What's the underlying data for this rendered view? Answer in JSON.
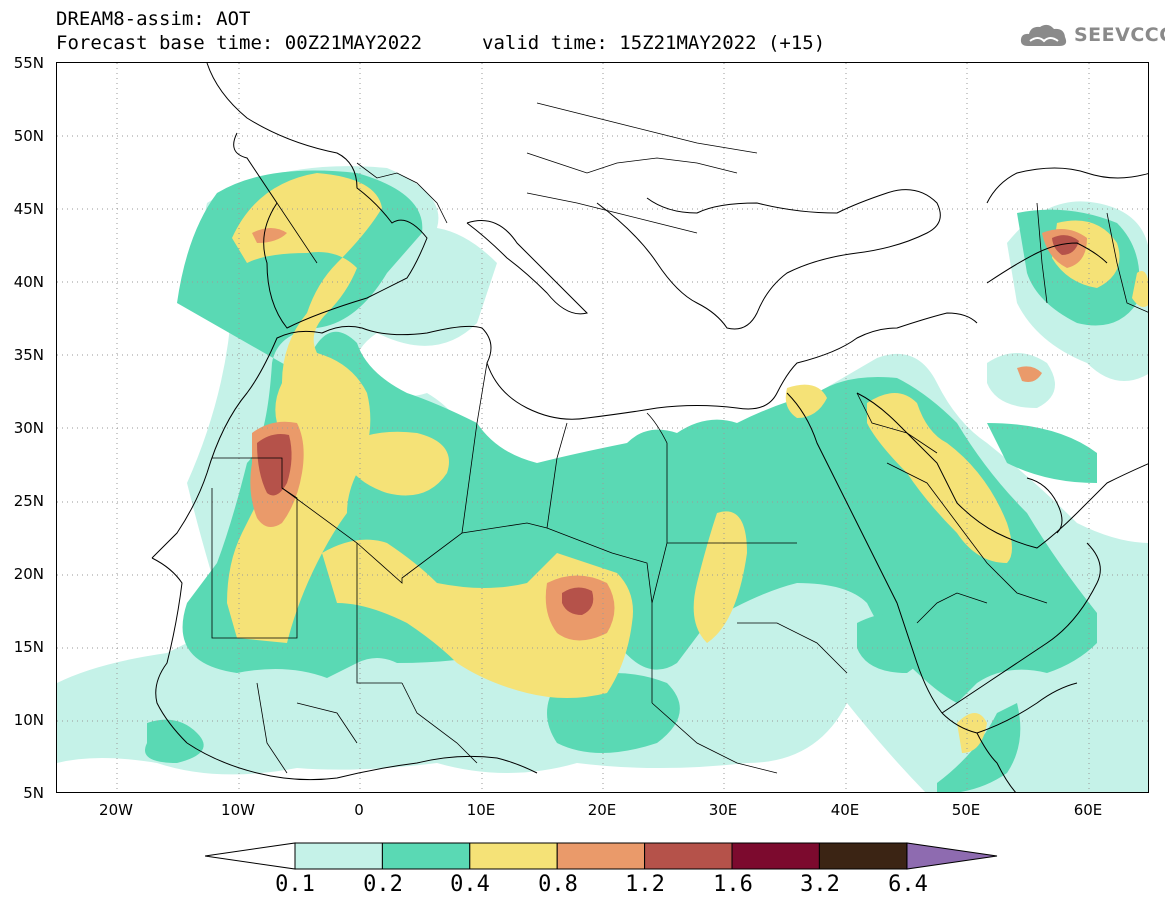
{
  "header": {
    "line1": "DREAM8-assim: AOT",
    "line2": "Forecast base time: 00Z21MAY2022",
    "valid": "valid time: 15Z21MAY2022 (+15)"
  },
  "logo": {
    "text": "SEEVCCC",
    "icon": "cloud-logo-icon",
    "color": "#8a8a8a"
  },
  "map": {
    "lon_range": [
      -25,
      65
    ],
    "lat_range": [
      5,
      55
    ],
    "lat_labels": [
      {
        "lat": 55,
        "label": "55N"
      },
      {
        "lat": 50,
        "label": "50N"
      },
      {
        "lat": 45,
        "label": "45N"
      },
      {
        "lat": 40,
        "label": "40N"
      },
      {
        "lat": 35,
        "label": "35N"
      },
      {
        "lat": 30,
        "label": "30N"
      },
      {
        "lat": 25,
        "label": "25N"
      },
      {
        "lat": 20,
        "label": "20N"
      },
      {
        "lat": 15,
        "label": "15N"
      },
      {
        "lat": 10,
        "label": "10N"
      },
      {
        "lat": 5,
        "label": "5N"
      }
    ],
    "lon_labels": [
      {
        "lon": -20,
        "label": "20W"
      },
      {
        "lon": -10,
        "label": "10W"
      },
      {
        "lon": 0,
        "label": "0"
      },
      {
        "lon": 10,
        "label": "10E"
      },
      {
        "lon": 20,
        "label": "20E"
      },
      {
        "lon": 30,
        "label": "30E"
      },
      {
        "lon": 40,
        "label": "40E"
      },
      {
        "lon": 50,
        "label": "50E"
      },
      {
        "lon": 60,
        "label": "60E"
      }
    ],
    "grid": "dotted"
  },
  "colorbar": {
    "bins": [
      {
        "color": "#c5f2e8"
      },
      {
        "color": "#5ad9b4"
      },
      {
        "color": "#f5e277"
      },
      {
        "color": "#ea9a6a"
      },
      {
        "color": "#b5524a"
      },
      {
        "color": "#7c0a2e"
      },
      {
        "color": "#3b2414"
      }
    ],
    "over_color": "#8e6bb0",
    "under_color": "#ffffff",
    "labels": [
      "0.1",
      "0.2",
      "0.4",
      "0.8",
      "1.2",
      "1.6",
      "3.2",
      "6.4"
    ]
  }
}
